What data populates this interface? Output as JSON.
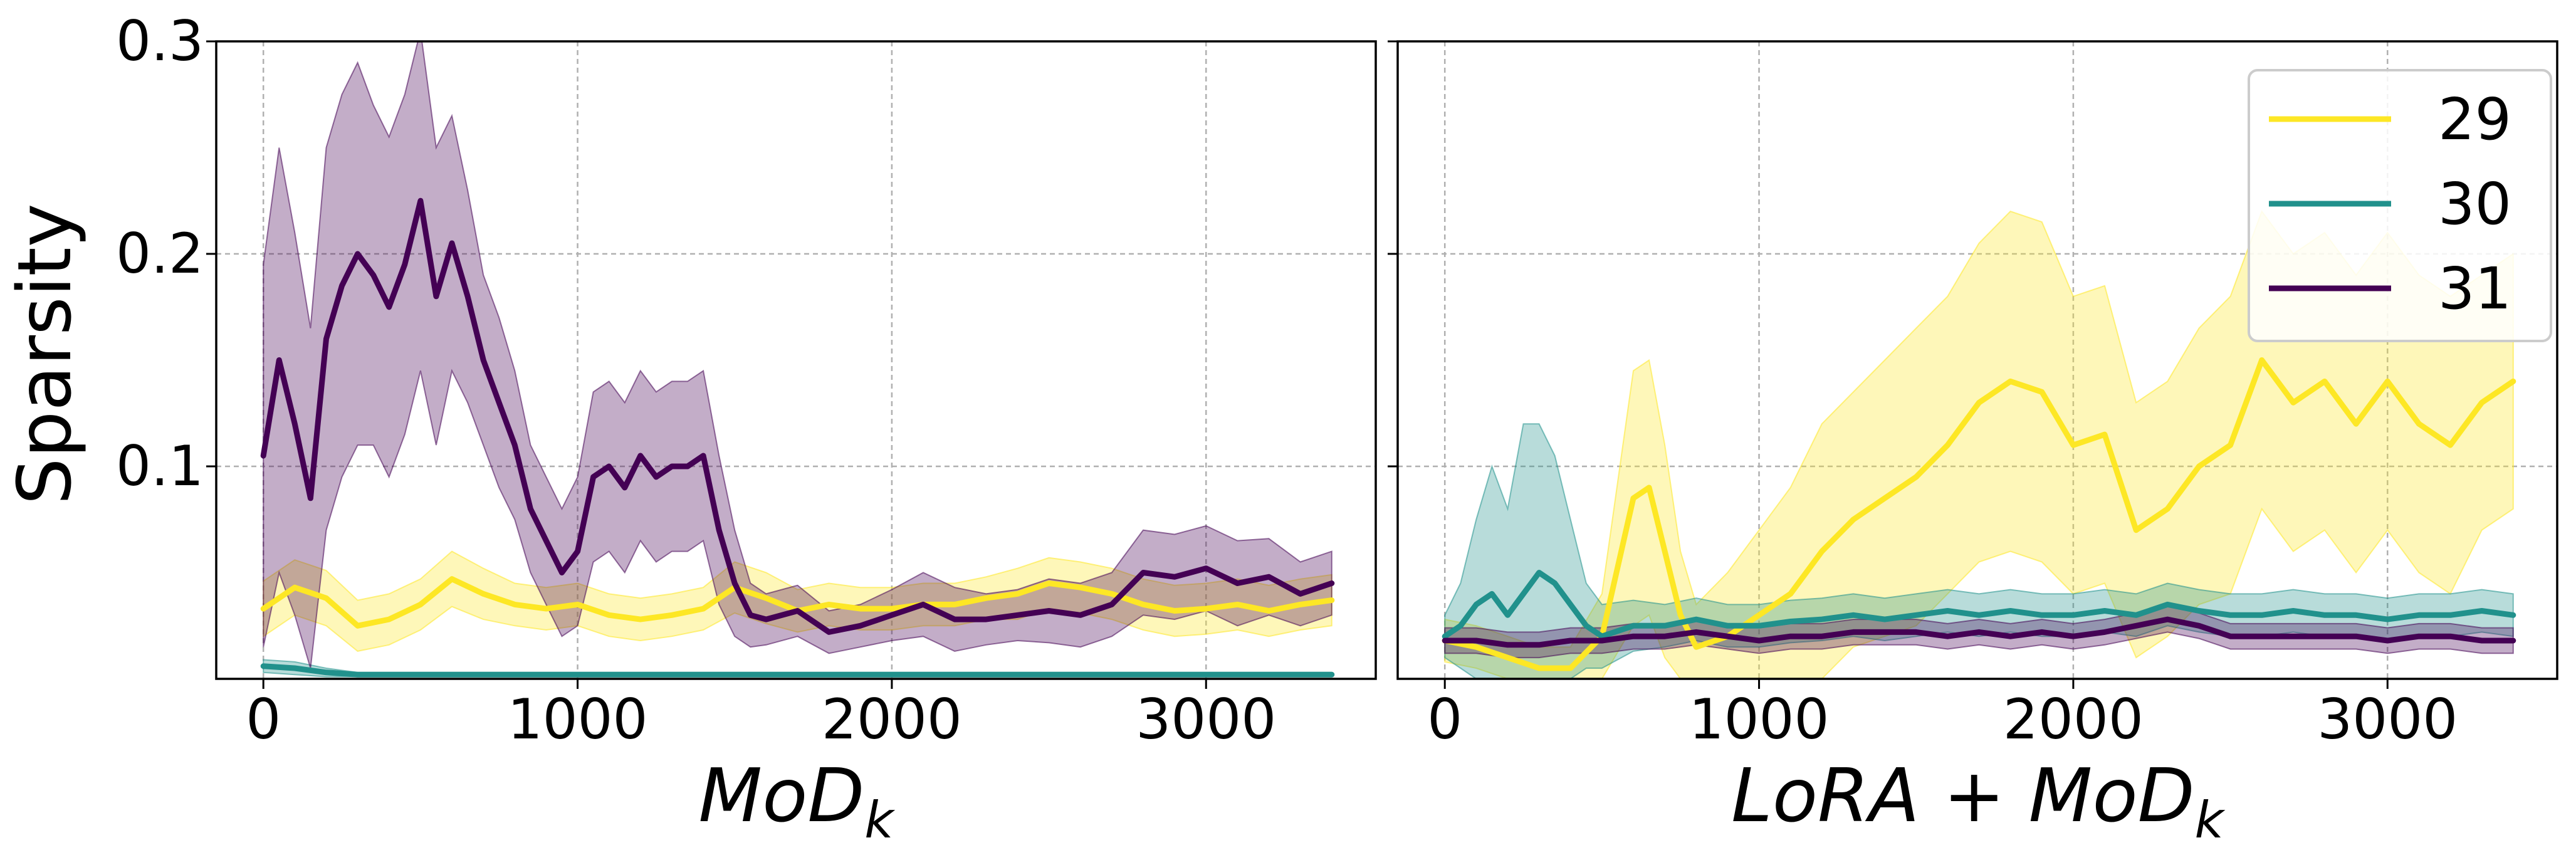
{
  "y_axis_label": "Sparsity",
  "chart_data": [
    {
      "type": "line",
      "panel": "left",
      "xlabel": "MoD",
      "xlabel_sub": "k",
      "ylabel": "Sparsity",
      "xlim": [
        -150,
        3540
      ],
      "ylim": [
        0.0,
        0.3
      ],
      "xticks": [
        0,
        1000,
        2000,
        3000
      ],
      "yticks": [
        0.1,
        0.2,
        0.3
      ],
      "xtick_labels": [
        "0",
        "1000",
        "2000",
        "3000"
      ],
      "ytick_labels": [
        "0.1",
        "0.2",
        "0.3"
      ],
      "grid": true,
      "shaded_band": "±1 std around smoothed mean",
      "series": [
        {
          "name": "29",
          "color": "#fde725",
          "x": [
            0,
            100,
            200,
            300,
            400,
            500,
            600,
            700,
            800,
            900,
            1000,
            1100,
            1200,
            1300,
            1400,
            1500,
            1600,
            1700,
            1800,
            1900,
            2000,
            2100,
            2200,
            2300,
            2400,
            2500,
            2600,
            2700,
            2800,
            2900,
            3000,
            3100,
            3200,
            3300,
            3400
          ],
          "values": [
            0.033,
            0.043,
            0.038,
            0.025,
            0.028,
            0.035,
            0.047,
            0.04,
            0.035,
            0.033,
            0.035,
            0.03,
            0.028,
            0.03,
            0.033,
            0.043,
            0.038,
            0.032,
            0.035,
            0.033,
            0.033,
            0.035,
            0.035,
            0.038,
            0.04,
            0.045,
            0.043,
            0.04,
            0.035,
            0.032,
            0.033,
            0.035,
            0.032,
            0.035,
            0.037
          ],
          "band": [
            0.013,
            0.013,
            0.013,
            0.012,
            0.012,
            0.012,
            0.013,
            0.012,
            0.01,
            0.01,
            0.01,
            0.01,
            0.01,
            0.01,
            0.01,
            0.012,
            0.012,
            0.01,
            0.01,
            0.01,
            0.01,
            0.01,
            0.01,
            0.01,
            0.012,
            0.012,
            0.012,
            0.012,
            0.012,
            0.012,
            0.012,
            0.012,
            0.012,
            0.012,
            0.012
          ]
        },
        {
          "name": "30",
          "color": "#21918c",
          "x": [
            0,
            100,
            200,
            300,
            400,
            500,
            600,
            700,
            800,
            900,
            1000,
            1100,
            1200,
            1300,
            1400,
            1500,
            1600,
            1700,
            1800,
            1900,
            2000,
            2100,
            2200,
            2300,
            2400,
            2500,
            2600,
            2700,
            2800,
            2900,
            3000,
            3100,
            3200,
            3300,
            3400
          ],
          "values": [
            0.006,
            0.005,
            0.003,
            0.002,
            0.002,
            0.002,
            0.002,
            0.002,
            0.002,
            0.002,
            0.002,
            0.002,
            0.002,
            0.002,
            0.002,
            0.002,
            0.002,
            0.002,
            0.002,
            0.002,
            0.002,
            0.002,
            0.002,
            0.002,
            0.002,
            0.002,
            0.002,
            0.002,
            0.002,
            0.002,
            0.002,
            0.002,
            0.002,
            0.002,
            0.002
          ],
          "band": [
            0.003,
            0.003,
            0.002,
            0.001,
            0.001,
            0.001,
            0.001,
            0.001,
            0.001,
            0.001,
            0.001,
            0.001,
            0.001,
            0.001,
            0.001,
            0.001,
            0.001,
            0.001,
            0.001,
            0.001,
            0.001,
            0.001,
            0.001,
            0.001,
            0.001,
            0.001,
            0.001,
            0.001,
            0.001,
            0.001,
            0.001,
            0.001,
            0.001,
            0.001,
            0.001
          ]
        },
        {
          "name": "31",
          "color": "#440154",
          "x": [
            0,
            50,
            100,
            150,
            200,
            250,
            300,
            350,
            400,
            450,
            500,
            550,
            600,
            650,
            700,
            750,
            800,
            850,
            900,
            950,
            1000,
            1050,
            1100,
            1150,
            1200,
            1250,
            1300,
            1350,
            1400,
            1450,
            1500,
            1550,
            1600,
            1700,
            1800,
            1900,
            2000,
            2100,
            2200,
            2300,
            2400,
            2500,
            2600,
            2700,
            2800,
            2900,
            3000,
            3100,
            3200,
            3300,
            3400
          ],
          "values": [
            0.105,
            0.15,
            0.12,
            0.085,
            0.16,
            0.185,
            0.2,
            0.19,
            0.175,
            0.195,
            0.225,
            0.18,
            0.205,
            0.18,
            0.15,
            0.13,
            0.11,
            0.08,
            0.065,
            0.05,
            0.06,
            0.095,
            0.1,
            0.09,
            0.105,
            0.095,
            0.1,
            0.1,
            0.105,
            0.07,
            0.045,
            0.03,
            0.028,
            0.032,
            0.022,
            0.025,
            0.03,
            0.035,
            0.028,
            0.028,
            0.03,
            0.032,
            0.03,
            0.035,
            0.05,
            0.048,
            0.052,
            0.045,
            0.048,
            0.04,
            0.045
          ],
          "band": [
            0.09,
            0.1,
            0.09,
            0.08,
            0.09,
            0.09,
            0.09,
            0.08,
            0.08,
            0.08,
            0.08,
            0.07,
            0.06,
            0.05,
            0.04,
            0.04,
            0.035,
            0.03,
            0.03,
            0.03,
            0.035,
            0.04,
            0.04,
            0.04,
            0.04,
            0.04,
            0.04,
            0.04,
            0.04,
            0.035,
            0.025,
            0.015,
            0.012,
            0.012,
            0.01,
            0.01,
            0.012,
            0.015,
            0.015,
            0.012,
            0.012,
            0.015,
            0.015,
            0.015,
            0.02,
            0.02,
            0.02,
            0.02,
            0.018,
            0.015,
            0.015
          ]
        }
      ]
    },
    {
      "type": "line",
      "panel": "right",
      "xlabel": "LoRA + MoD",
      "xlabel_sub": "k",
      "xlim": [
        -150,
        3540
      ],
      "ylim": [
        0.0,
        0.3
      ],
      "xticks": [
        0,
        1000,
        2000,
        3000
      ],
      "xtick_labels": [
        "0",
        "1000",
        "2000",
        "3000"
      ],
      "grid": true,
      "legend": {
        "position": "top-right",
        "entries": [
          "29",
          "30",
          "31"
        ]
      },
      "series": [
        {
          "name": "29",
          "color": "#fde725",
          "x": [
            0,
            100,
            200,
            300,
            400,
            500,
            600,
            650,
            700,
            750,
            800,
            900,
            1000,
            1100,
            1200,
            1300,
            1400,
            1500,
            1600,
            1700,
            1800,
            1900,
            2000,
            2100,
            2200,
            2300,
            2400,
            2500,
            2600,
            2700,
            2800,
            2900,
            3000,
            3100,
            3200,
            3300,
            3400
          ],
          "values": [
            0.018,
            0.015,
            0.01,
            0.005,
            0.005,
            0.02,
            0.085,
            0.09,
            0.06,
            0.03,
            0.015,
            0.02,
            0.03,
            0.04,
            0.06,
            0.075,
            0.085,
            0.095,
            0.11,
            0.13,
            0.14,
            0.135,
            0.11,
            0.115,
            0.07,
            0.08,
            0.1,
            0.11,
            0.15,
            0.13,
            0.14,
            0.12,
            0.14,
            0.12,
            0.11,
            0.13,
            0.14
          ],
          "band": [
            0.01,
            0.01,
            0.01,
            0.01,
            0.01,
            0.02,
            0.06,
            0.06,
            0.05,
            0.03,
            0.02,
            0.03,
            0.04,
            0.05,
            0.06,
            0.06,
            0.065,
            0.07,
            0.07,
            0.075,
            0.08,
            0.08,
            0.07,
            0.07,
            0.06,
            0.06,
            0.065,
            0.07,
            0.07,
            0.07,
            0.07,
            0.07,
            0.07,
            0.07,
            0.07,
            0.06,
            0.06
          ]
        },
        {
          "name": "30",
          "color": "#21918c",
          "x": [
            0,
            50,
            100,
            150,
            200,
            250,
            300,
            350,
            400,
            450,
            500,
            600,
            700,
            800,
            900,
            1000,
            1100,
            1200,
            1300,
            1400,
            1500,
            1600,
            1700,
            1800,
            1900,
            2000,
            2100,
            2200,
            2300,
            2400,
            2500,
            2600,
            2700,
            2800,
            2900,
            3000,
            3100,
            3200,
            3300,
            3400
          ],
          "values": [
            0.02,
            0.025,
            0.035,
            0.04,
            0.03,
            0.04,
            0.05,
            0.045,
            0.035,
            0.025,
            0.02,
            0.025,
            0.025,
            0.028,
            0.025,
            0.025,
            0.027,
            0.028,
            0.03,
            0.028,
            0.03,
            0.032,
            0.03,
            0.032,
            0.03,
            0.03,
            0.032,
            0.03,
            0.035,
            0.032,
            0.03,
            0.03,
            0.032,
            0.03,
            0.03,
            0.028,
            0.03,
            0.03,
            0.032,
            0.03
          ],
          "band": [
            0.01,
            0.02,
            0.04,
            0.06,
            0.05,
            0.08,
            0.07,
            0.06,
            0.04,
            0.02,
            0.015,
            0.012,
            0.01,
            0.01,
            0.01,
            0.01,
            0.01,
            0.01,
            0.01,
            0.01,
            0.01,
            0.01,
            0.01,
            0.01,
            0.01,
            0.01,
            0.01,
            0.01,
            0.01,
            0.01,
            0.01,
            0.01,
            0.01,
            0.01,
            0.01,
            0.01,
            0.01,
            0.01,
            0.01,
            0.01
          ]
        },
        {
          "name": "31",
          "color": "#440154",
          "x": [
            0,
            100,
            200,
            300,
            400,
            500,
            600,
            700,
            800,
            900,
            1000,
            1100,
            1200,
            1300,
            1400,
            1500,
            1600,
            1700,
            1800,
            1900,
            2000,
            2100,
            2200,
            2300,
            2400,
            2500,
            2600,
            2700,
            2800,
            2900,
            3000,
            3100,
            3200,
            3300,
            3400
          ],
          "values": [
            0.018,
            0.018,
            0.016,
            0.016,
            0.018,
            0.018,
            0.02,
            0.02,
            0.022,
            0.02,
            0.018,
            0.02,
            0.02,
            0.022,
            0.022,
            0.022,
            0.02,
            0.022,
            0.02,
            0.022,
            0.02,
            0.022,
            0.025,
            0.028,
            0.025,
            0.02,
            0.02,
            0.02,
            0.02,
            0.02,
            0.018,
            0.02,
            0.02,
            0.018,
            0.018
          ],
          "band": [
            0.006,
            0.006,
            0.006,
            0.006,
            0.006,
            0.006,
            0.006,
            0.006,
            0.006,
            0.006,
            0.006,
            0.006,
            0.006,
            0.006,
            0.006,
            0.006,
            0.006,
            0.006,
            0.006,
            0.006,
            0.006,
            0.006,
            0.006,
            0.006,
            0.006,
            0.006,
            0.006,
            0.006,
            0.006,
            0.006,
            0.006,
            0.006,
            0.006,
            0.006,
            0.006
          ]
        }
      ]
    }
  ]
}
